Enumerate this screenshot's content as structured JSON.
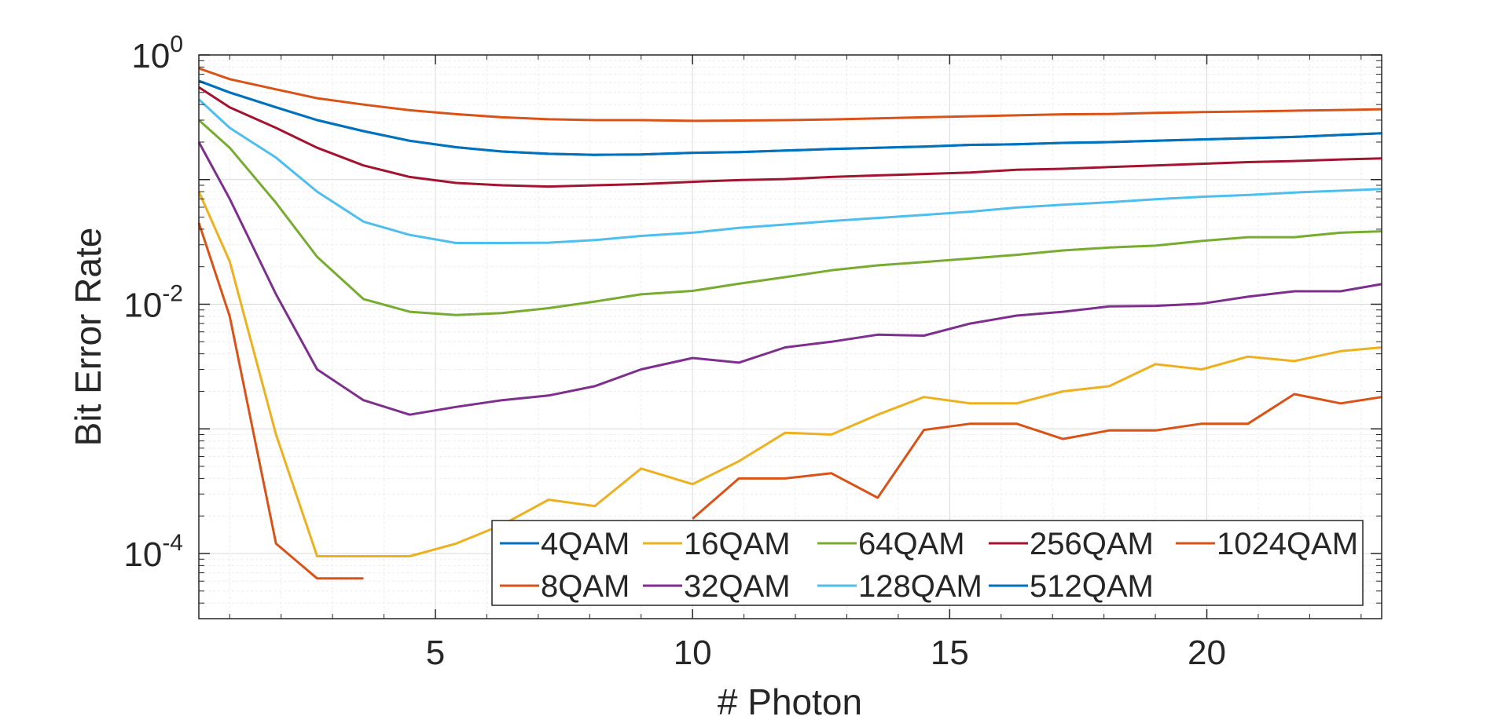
{
  "chart_data": {
    "type": "line",
    "xlabel": "# Photon",
    "ylabel": "Bit Error Rate",
    "xlim": [
      0.4,
      23.4
    ],
    "ylim": [
      3e-05,
      1.0
    ],
    "yscale": "log",
    "grid": true,
    "legend_position": "bottom-right",
    "x_ticks": [
      5,
      10,
      15,
      20
    ],
    "y_ticks": [
      {
        "value": 1.0,
        "base": "10",
        "exp": "0"
      },
      {
        "value": 0.01,
        "base": "10",
        "exp": "-2"
      },
      {
        "value": 0.0001,
        "base": "10",
        "exp": "-4"
      }
    ],
    "x": [
      0.4,
      1.0,
      1.9,
      2.7,
      3.6,
      4.5,
      5.4,
      6.3,
      7.2,
      8.1,
      9.0,
      10.0,
      10.9,
      11.8,
      12.7,
      13.6,
      14.5,
      15.4,
      16.3,
      17.2,
      18.1,
      19.0,
      19.9,
      20.8,
      21.7,
      22.6,
      23.4
    ],
    "series": [
      {
        "name": "4QAM",
        "color": "#0072BD",
        "values": [
          0.62,
          0.5,
          0.38,
          0.3,
          0.245,
          0.205,
          0.182,
          0.168,
          0.161,
          0.158,
          0.159,
          0.164,
          0.166,
          0.171,
          0.176,
          0.18,
          0.184,
          0.19,
          0.192,
          0.197,
          0.2,
          0.205,
          0.21,
          0.215,
          0.22,
          0.228,
          0.235
        ]
      },
      {
        "name": "16QAM",
        "color": "#EDB120",
        "values": [
          0.08,
          0.022,
          0.0009,
          9.5e-05,
          9.5e-05,
          9.5e-05,
          0.00012,
          0.00017,
          0.00027,
          0.00024,
          0.00048,
          0.00036,
          0.00055,
          0.00093,
          0.0009,
          0.0013,
          0.0018,
          0.0016,
          0.0016,
          0.002,
          0.0022,
          0.0033,
          0.003,
          0.0038,
          0.0035,
          0.0042,
          0.0045
        ]
      },
      {
        "name": "64QAM",
        "color": "#77AC30",
        "values": [
          0.3,
          0.18,
          0.065,
          0.024,
          0.011,
          0.0087,
          0.0082,
          0.0085,
          0.0093,
          0.0105,
          0.012,
          0.0128,
          0.0146,
          0.0165,
          0.0187,
          0.0205,
          0.0218,
          0.0233,
          0.0249,
          0.027,
          0.0285,
          0.0295,
          0.0322,
          0.0345,
          0.0345,
          0.0375,
          0.0385
        ]
      },
      {
        "name": "256QAM",
        "color": "#A2142F",
        "values": [
          0.55,
          0.38,
          0.26,
          0.18,
          0.13,
          0.105,
          0.094,
          0.09,
          0.088,
          0.09,
          0.092,
          0.096,
          0.099,
          0.101,
          0.105,
          0.108,
          0.111,
          0.114,
          0.12,
          0.122,
          0.126,
          0.13,
          0.134,
          0.138,
          0.141,
          0.145,
          0.148
        ]
      },
      {
        "name": "1024QAM",
        "color": "#D95319",
        "values": [
          0.78,
          0.64,
          0.53,
          0.45,
          0.4,
          0.36,
          0.335,
          0.316,
          0.305,
          0.3,
          0.3,
          0.296,
          0.298,
          0.3,
          0.304,
          0.31,
          0.316,
          0.322,
          0.328,
          0.334,
          0.336,
          0.343,
          0.348,
          0.352,
          0.357,
          0.362,
          0.367
        ]
      },
      {
        "name": "8QAM",
        "color": "#D95319",
        "values": [
          0.045,
          0.008,
          0.00012,
          6.3e-05,
          6.3e-05,
          null,
          null,
          null,
          null,
          null,
          null,
          0.00019,
          0.0004,
          0.0004,
          0.00044,
          0.00028,
          0.00098,
          0.0011,
          0.0011,
          0.00083,
          0.00097,
          0.00097,
          0.0011,
          0.0011,
          0.0019,
          0.0016,
          0.0018
        ]
      },
      {
        "name": "32QAM",
        "color": "#7E2F8E",
        "values": [
          0.2,
          0.07,
          0.012,
          0.003,
          0.0017,
          0.0013,
          0.0015,
          0.0017,
          0.00185,
          0.0022,
          0.003,
          0.0037,
          0.0034,
          0.0045,
          0.005,
          0.0057,
          0.0056,
          0.007,
          0.0081,
          0.0087,
          0.0096,
          0.0097,
          0.0101,
          0.0115,
          0.0127,
          0.0127,
          0.0145
        ]
      },
      {
        "name": "128QAM",
        "color": "#4DBEEE",
        "values": [
          0.44,
          0.26,
          0.15,
          0.08,
          0.046,
          0.036,
          0.031,
          0.031,
          0.0312,
          0.0327,
          0.0353,
          0.0375,
          0.041,
          0.0436,
          0.0465,
          0.0492,
          0.052,
          0.0553,
          0.0596,
          0.0628,
          0.0658,
          0.0695,
          0.0728,
          0.0752,
          0.0788,
          0.0815,
          0.084
        ]
      },
      {
        "name": "512QAM",
        "color": "#0072BD",
        "values": [
          0.62,
          0.5,
          0.38,
          0.3,
          0.245,
          0.205,
          0.182,
          0.168,
          0.161,
          0.158,
          0.159,
          0.164,
          0.166,
          0.171,
          0.176,
          0.18,
          0.184,
          0.19,
          0.192,
          0.197,
          0.2,
          0.205,
          0.21,
          0.215,
          0.22,
          0.228,
          0.235
        ]
      }
    ],
    "legend_rows": [
      [
        "4QAM",
        "16QAM",
        "64QAM",
        "256QAM",
        "1024QAM"
      ],
      [
        "8QAM",
        "32QAM",
        "128QAM",
        "512QAM"
      ]
    ]
  }
}
